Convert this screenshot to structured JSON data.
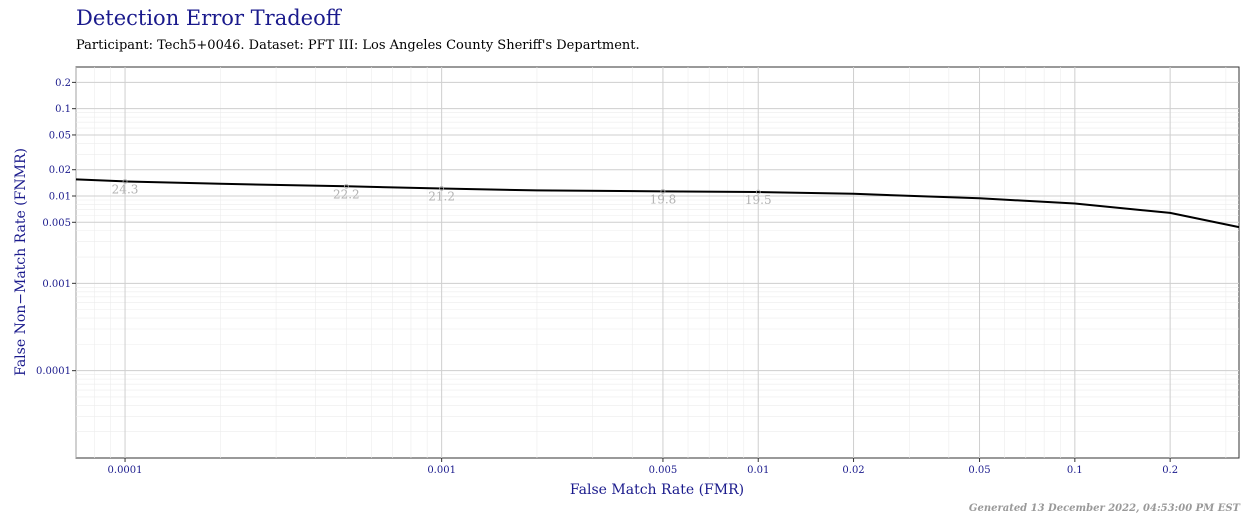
{
  "chart_data": {
    "type": "line",
    "title": "Detection Error Tradeoff",
    "subtitle": "Participant: Tech5+0046. Dataset: PFT III: Los Angeles County Sheriff's Department.",
    "xlabel": "False Match Rate (FMR)",
    "ylabel": "False Non−Match Rate (FNMR)",
    "x_scale": "log",
    "y_scale": "log",
    "xlim": [
      7e-05,
      0.33
    ],
    "ylim": [
      1e-05,
      0.3
    ],
    "x_ticks": [
      {
        "value": 0.0001,
        "label": "0.0001"
      },
      {
        "value": 0.001,
        "label": "0.001"
      },
      {
        "value": 0.005,
        "label": "0.005"
      },
      {
        "value": 0.01,
        "label": "0.01"
      },
      {
        "value": 0.02,
        "label": "0.02"
      },
      {
        "value": 0.05,
        "label": "0.05"
      },
      {
        "value": 0.1,
        "label": "0.1"
      },
      {
        "value": 0.2,
        "label": "0.2"
      }
    ],
    "y_ticks": [
      {
        "value": 0.0001,
        "label": "0.0001"
      },
      {
        "value": 0.001,
        "label": "0.001"
      },
      {
        "value": 0.005,
        "label": "0.005"
      },
      {
        "value": 0.01,
        "label": "0.01"
      },
      {
        "value": 0.02,
        "label": "0.02"
      },
      {
        "value": 0.05,
        "label": "0.05"
      },
      {
        "value": 0.1,
        "label": "0.1"
      },
      {
        "value": 0.2,
        "label": "0.2"
      }
    ],
    "grid": true,
    "series": [
      {
        "color": "#000000",
        "x": [
          7e-05,
          0.0001,
          0.0002,
          0.0005,
          0.001,
          0.002,
          0.005,
          0.01,
          0.02,
          0.05,
          0.1,
          0.2,
          0.33
        ],
        "y": [
          0.0155,
          0.0147,
          0.0138,
          0.0129,
          0.0122,
          0.0116,
          0.0113,
          0.0111,
          0.0106,
          0.0094,
          0.0082,
          0.0064,
          0.0044
        ]
      }
    ],
    "threshold_labels": [
      {
        "x": 0.0001,
        "y": 0.0147,
        "label": "24.3"
      },
      {
        "x": 0.0005,
        "y": 0.0129,
        "label": "22.2"
      },
      {
        "x": 0.001,
        "y": 0.0122,
        "label": "21.2"
      },
      {
        "x": 0.005,
        "y": 0.0113,
        "label": "19.8"
      },
      {
        "x": 0.01,
        "y": 0.0111,
        "label": "19.5"
      }
    ]
  },
  "footer": "Generated 13 December 2022, 04:53:00 PM EST"
}
